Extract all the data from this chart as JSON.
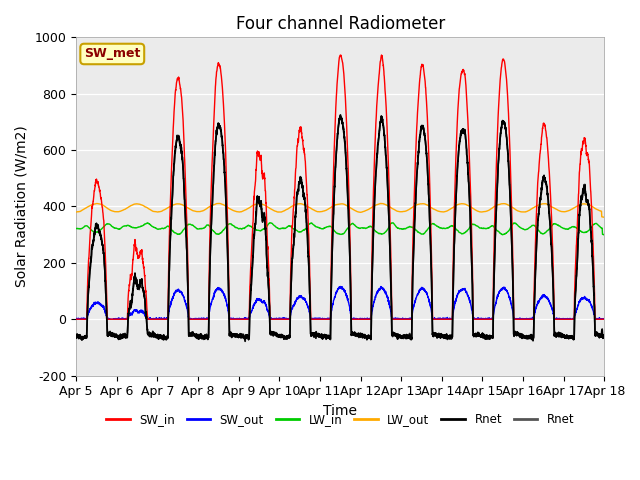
{
  "title": "Four channel Radiometer",
  "xlabel": "Time",
  "ylabel": "Solar Radiation (W/m2)",
  "ylim": [
    -200,
    1000
  ],
  "xlim": [
    0,
    13
  ],
  "xtick_labels": [
    "Apr 5",
    "Apr 6",
    "Apr 7",
    "Apr 8",
    "Apr 9",
    "Apr 10",
    "Apr 11",
    "Apr 12",
    "Apr 13",
    "Apr 14",
    "Apr 15",
    "Apr 16",
    "Apr 17",
    "Apr 18"
  ],
  "ytick_labels": [
    "-200",
    "0",
    "200",
    "400",
    "600",
    "800",
    "1000"
  ],
  "ytick_values": [
    -200,
    0,
    200,
    400,
    600,
    800,
    1000
  ],
  "annotation_text": "SW_met",
  "annotation_bg": "#ffffc0",
  "annotation_border": "#c8a000",
  "plot_bg": "#ebebeb",
  "colors": {
    "SW_in": "#ff0000",
    "SW_out": "#0000ff",
    "LW_in": "#00cc00",
    "LW_out": "#ffaa00",
    "Rnet_black": "#000000",
    "Rnet_dark": "#222222"
  },
  "legend_entries": [
    {
      "label": "SW_in",
      "color": "#ff0000"
    },
    {
      "label": "SW_out",
      "color": "#0000ff"
    },
    {
      "label": "LW_in",
      "color": "#00cc00"
    },
    {
      "label": "LW_out",
      "color": "#ffaa00"
    },
    {
      "label": "Rnet",
      "color": "#000000"
    },
    {
      "label": "Rnet",
      "color": "#555555"
    }
  ],
  "title_fontsize": 12,
  "axis_fontsize": 9,
  "label_fontsize": 10,
  "figsize": [
    6.4,
    4.8
  ],
  "dpi": 100
}
